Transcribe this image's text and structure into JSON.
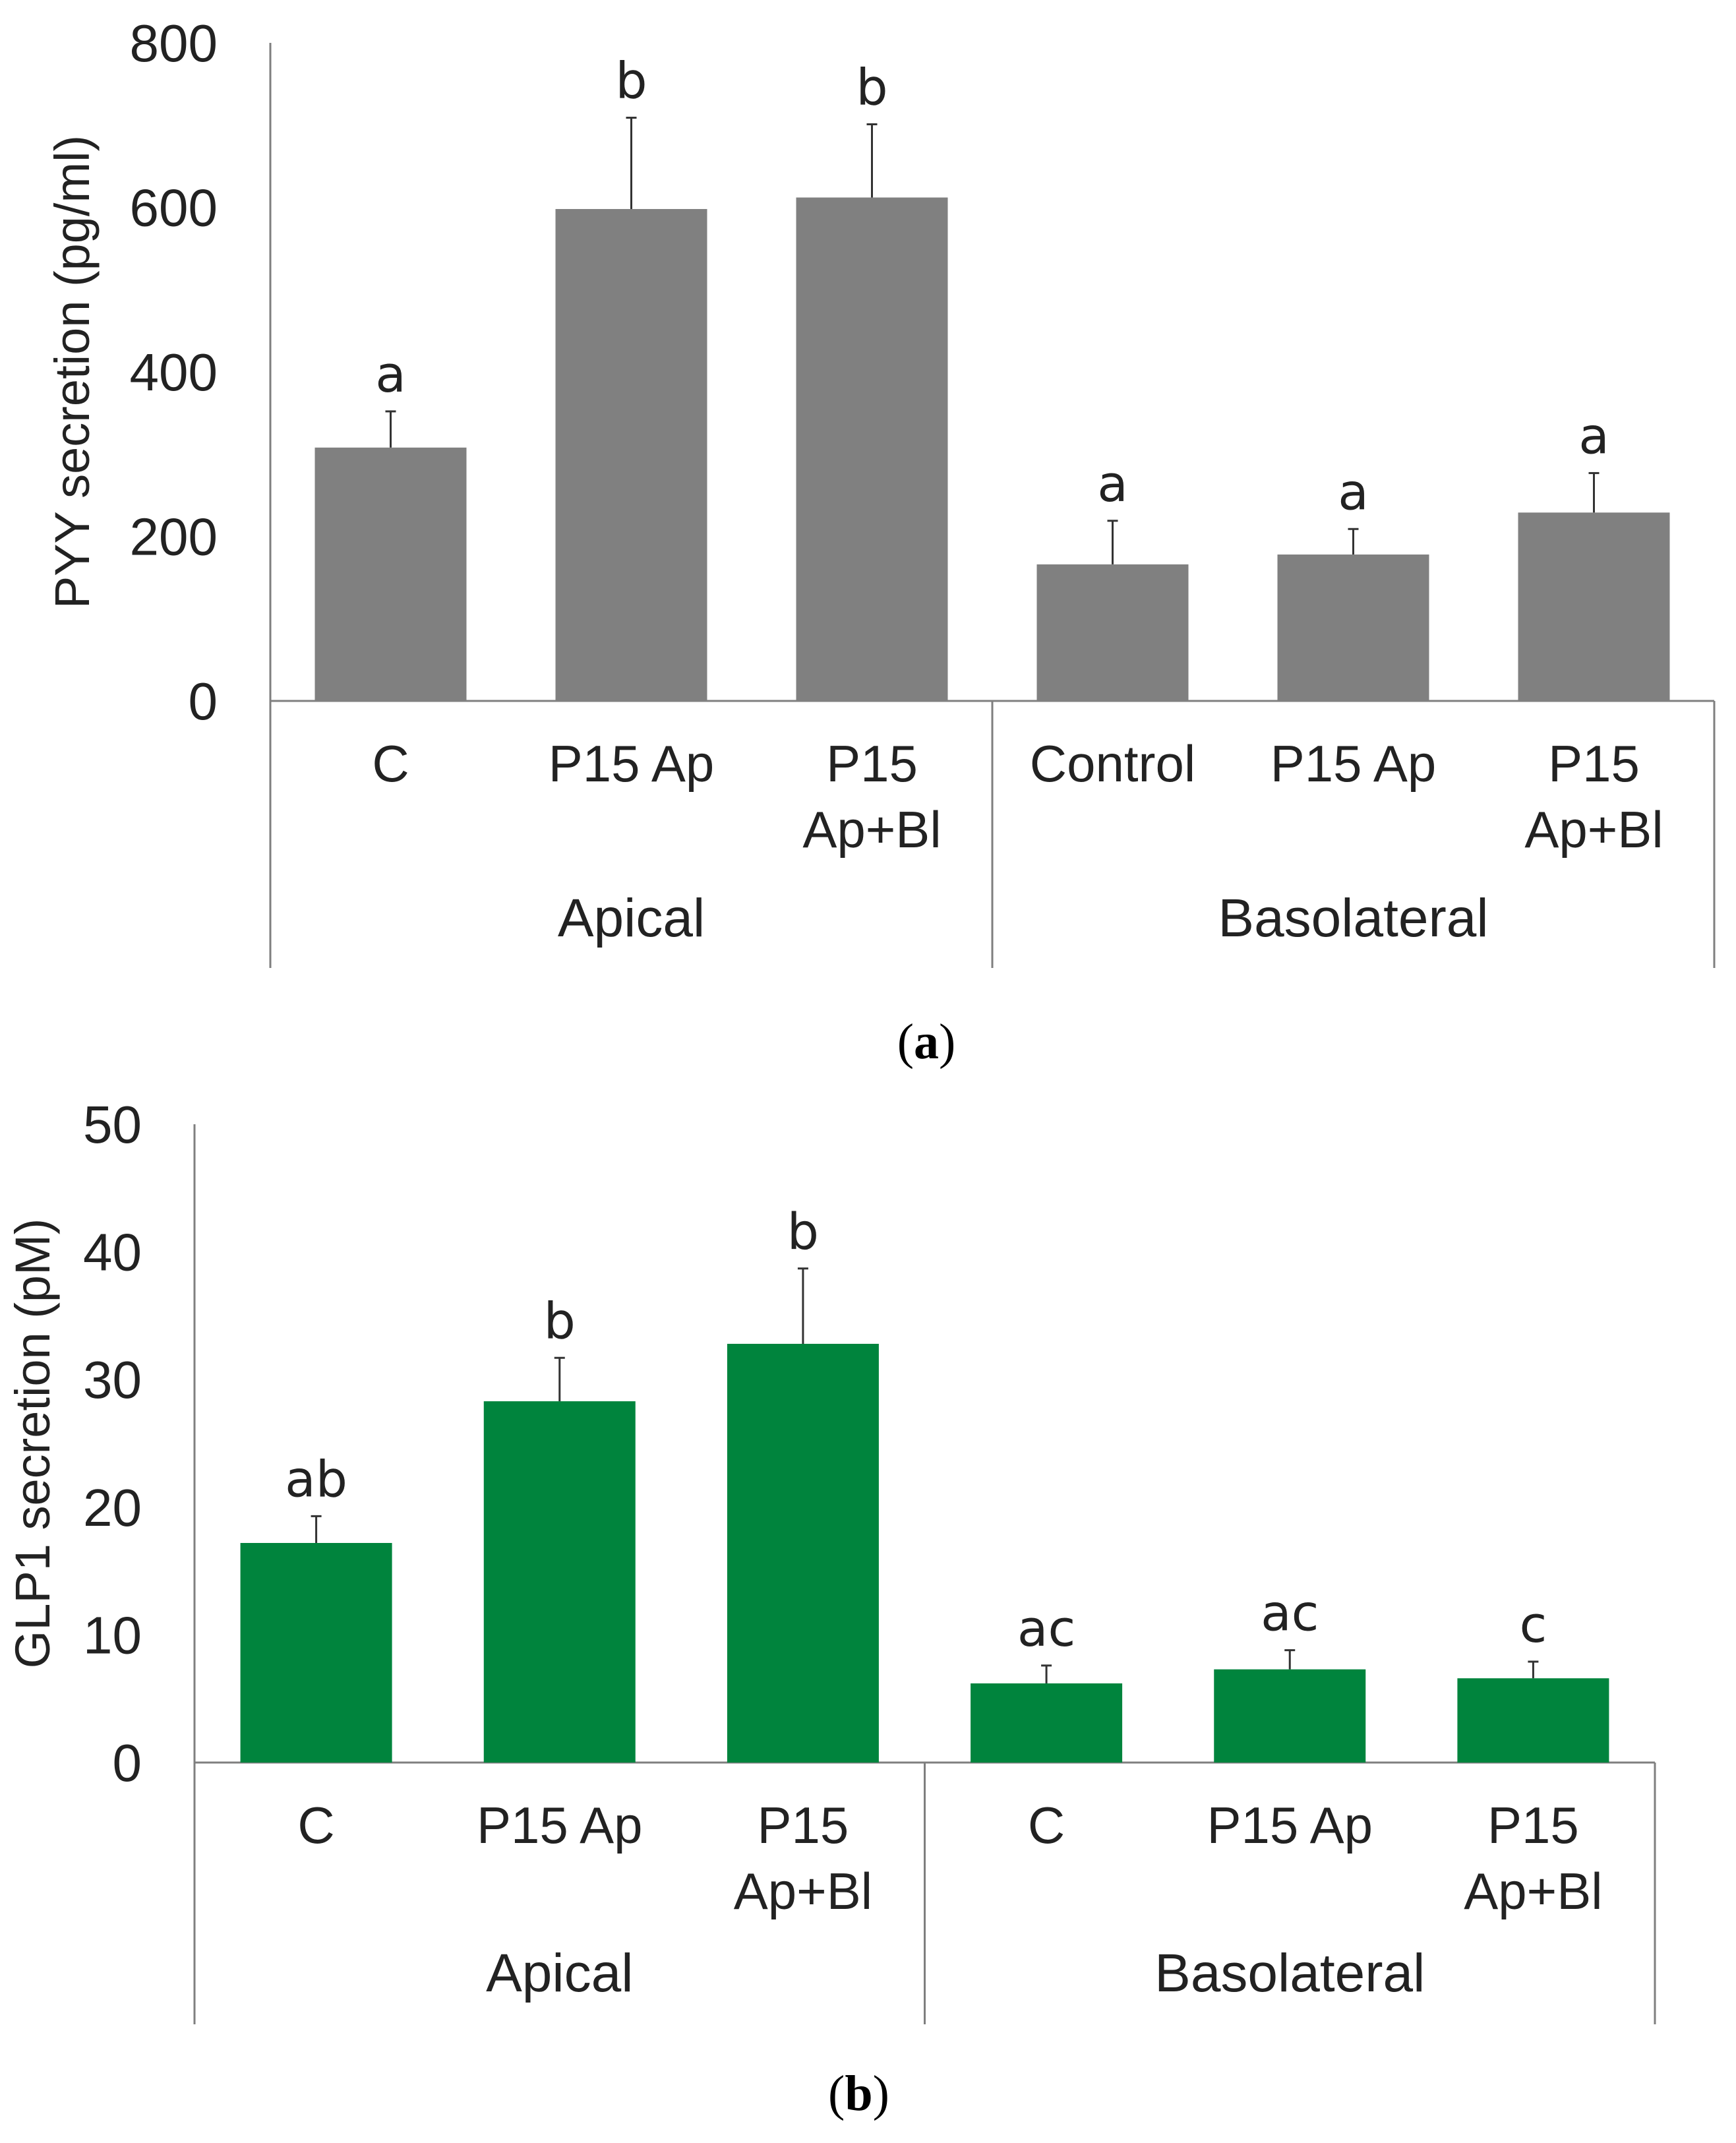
{
  "chart_data": [
    {
      "type": "bar",
      "panel_label": "(a)",
      "ylabel": "PYY secretion (pg/ml)",
      "ylim": [
        0,
        800
      ],
      "yticks": [
        0,
        200,
        400,
        600,
        800
      ],
      "bar_color": "#808080",
      "groups": [
        {
          "name": "Apical",
          "categories": [
            "C",
            "P15 Ap",
            "P15\nAp+Bl"
          ]
        },
        {
          "name": "Basolateral",
          "categories": [
            "Control",
            "P15 Ap",
            "P15\nAp+Bl"
          ]
        }
      ],
      "values": [
        308,
        598,
        612,
        166,
        178,
        229
      ],
      "errors": [
        44,
        111,
        89,
        53,
        31,
        48
      ],
      "letters": [
        "a",
        "b",
        "b",
        "a",
        "a",
        "a"
      ]
    },
    {
      "type": "bar",
      "panel_label": "(b)",
      "ylabel": "GLP1 secretion (pM)",
      "ylim": [
        0,
        50
      ],
      "yticks": [
        0,
        10,
        20,
        30,
        40,
        50
      ],
      "bar_color": "#00843d",
      "groups": [
        {
          "name": "Apical",
          "categories": [
            "C",
            "P15 Ap",
            "P15\nAp+Bl"
          ]
        },
        {
          "name": "Basolateral",
          "categories": [
            "C",
            "P15 Ap",
            "P15\nAp+Bl"
          ]
        }
      ],
      "values": [
        17.2,
        28.3,
        32.8,
        6.2,
        7.3,
        6.6
      ],
      "errors": [
        2.1,
        3.4,
        5.9,
        1.4,
        1.5,
        1.3
      ],
      "letters": [
        "ab",
        "b",
        "b",
        "ac",
        "ac",
        "c"
      ]
    }
  ]
}
